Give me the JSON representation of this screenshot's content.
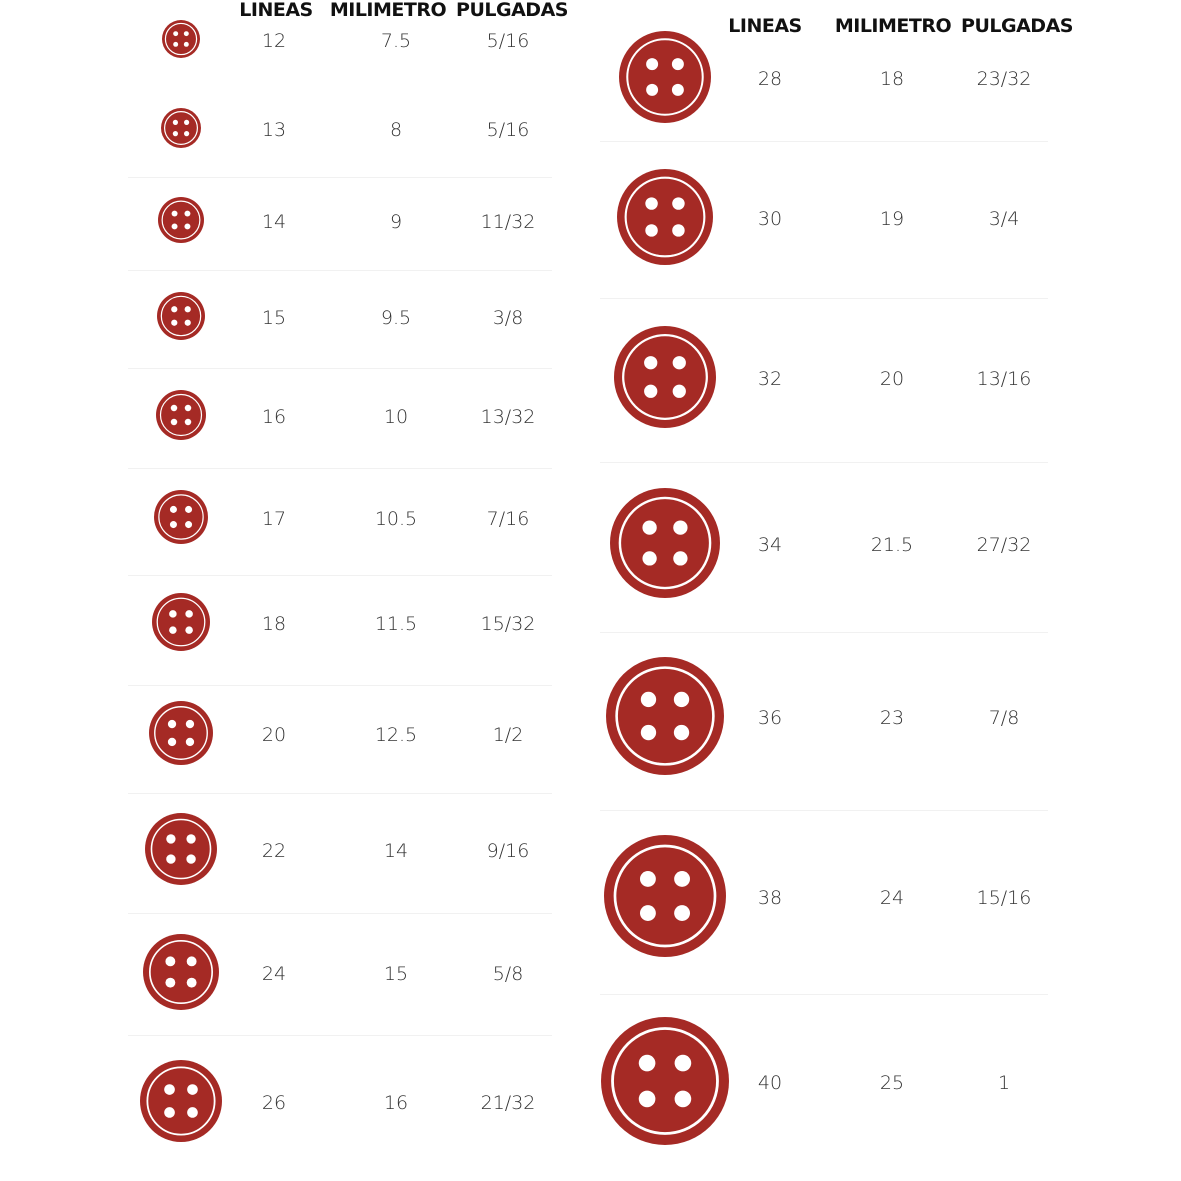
{
  "accent_color": "#a52a25",
  "button_icon": "four-hole-button-icon",
  "left_table": {
    "headers": [
      "LINEAS",
      "MILIMETRO",
      "PULGADAS"
    ],
    "rows": [
      {
        "lineas": "12",
        "milimetro": "7.5",
        "pulgadas": "5/16"
      },
      {
        "lineas": "13",
        "milimetro": "8",
        "pulgadas": "5/16"
      },
      {
        "lineas": "14",
        "milimetro": "9",
        "pulgadas": "11/32"
      },
      {
        "lineas": "15",
        "milimetro": "9.5",
        "pulgadas": "3/8"
      },
      {
        "lineas": "16",
        "milimetro": "10",
        "pulgadas": "13/32"
      },
      {
        "lineas": "17",
        "milimetro": "10.5",
        "pulgadas": "7/16"
      },
      {
        "lineas": "18",
        "milimetro": "11.5",
        "pulgadas": "15/32"
      },
      {
        "lineas": "20",
        "milimetro": "12.5",
        "pulgadas": "1/2"
      },
      {
        "lineas": "22",
        "milimetro": "14",
        "pulgadas": "9/16"
      },
      {
        "lineas": "24",
        "milimetro": "15",
        "pulgadas": "5/8"
      },
      {
        "lineas": "26",
        "milimetro": "16",
        "pulgadas": "21/32"
      }
    ]
  },
  "right_table": {
    "headers": [
      "LINEAS",
      "MILIMETRO",
      "PULGADAS"
    ],
    "rows": [
      {
        "lineas": "28",
        "milimetro": "18",
        "pulgadas": "23/32"
      },
      {
        "lineas": "30",
        "milimetro": "19",
        "pulgadas": "3/4"
      },
      {
        "lineas": "32",
        "milimetro": "20",
        "pulgadas": "13/16"
      },
      {
        "lineas": "34",
        "milimetro": "21.5",
        "pulgadas": "27/32"
      },
      {
        "lineas": "36",
        "milimetro": "23",
        "pulgadas": "7/8"
      },
      {
        "lineas": "38",
        "milimetro": "24",
        "pulgadas": "15/16"
      },
      {
        "lineas": "40",
        "milimetro": "25",
        "pulgadas": "1"
      }
    ]
  }
}
